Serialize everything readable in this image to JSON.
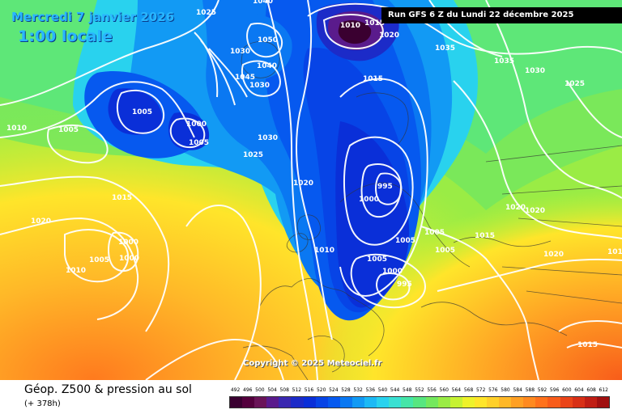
{
  "header": {
    "date_text": "Mercredi 7 janvier 2026",
    "local_time": "1:00 locale",
    "run_info": "Run GFS 6 Z du Lundi 22 décembre 2025"
  },
  "copyright": "Copyright © 2025 Meteociel.fr",
  "footer": {
    "title": "Géop. Z500 & pression au sol",
    "offset": "(+ 378h)"
  },
  "scale": {
    "labels": [
      "492",
      "496",
      "500",
      "504",
      "508",
      "512",
      "516",
      "520",
      "524",
      "528",
      "532",
      "536",
      "540",
      "544",
      "548",
      "552",
      "556",
      "560",
      "564",
      "568",
      "572",
      "576",
      "580",
      "584",
      "588",
      "592",
      "596",
      "600",
      "604",
      "608",
      "612"
    ],
    "colors": [
      "#3a0030",
      "#54003d",
      "#6a1458",
      "#5a1b8c",
      "#3a28b0",
      "#1c2bc8",
      "#0a2fd8",
      "#0744e6",
      "#0659ef",
      "#0a78f2",
      "#129af4",
      "#1cb9f5",
      "#29d2ee",
      "#3ae0d2",
      "#45e6a8",
      "#57e680",
      "#74e85e",
      "#9aec45",
      "#c6f233",
      "#eef22a",
      "#ffe52a",
      "#ffd02a",
      "#ffb828",
      "#ffa024",
      "#ff8a20",
      "#ff721c",
      "#f85c1a",
      "#ea4418",
      "#d83016",
      "#c01e14",
      "#a01010"
    ]
  },
  "isobars": [
    {
      "value": "1025"
    },
    {
      "value": "1040"
    },
    {
      "value": "1010"
    },
    {
      "value": "1015"
    },
    {
      "value": "1020"
    },
    {
      "value": "1050"
    },
    {
      "value": "1035"
    },
    {
      "value": "1030"
    },
    {
      "value": "1035"
    },
    {
      "value": "1030"
    },
    {
      "value": "1045"
    },
    {
      "value": "1040"
    },
    {
      "value": "1030"
    },
    {
      "value": "1025"
    },
    {
      "value": "1015"
    },
    {
      "value": "1005"
    },
    {
      "value": "1010"
    },
    {
      "value": "1005"
    },
    {
      "value": "1000"
    },
    {
      "value": "1005"
    },
    {
      "value": "1030"
    },
    {
      "value": "1025"
    },
    {
      "value": "1020"
    },
    {
      "value": "995"
    },
    {
      "value": "1000"
    },
    {
      "value": "1015"
    },
    {
      "value": "1020"
    },
    {
      "value": "1000"
    },
    {
      "value": "1005"
    },
    {
      "value": "1000"
    },
    {
      "value": "1010"
    },
    {
      "value": "1010"
    },
    {
      "value": "1005"
    },
    {
      "value": "1005"
    },
    {
      "value": "1015"
    },
    {
      "value": "1005"
    },
    {
      "value": "1000"
    },
    {
      "value": "995"
    },
    {
      "value": "1020"
    },
    {
      "value": "1020"
    },
    {
      "value": "1020"
    },
    {
      "value": "1015"
    },
    {
      "value": "1010"
    },
    {
      "value": "1005"
    },
    {
      "value": "1010"
    }
  ]
}
